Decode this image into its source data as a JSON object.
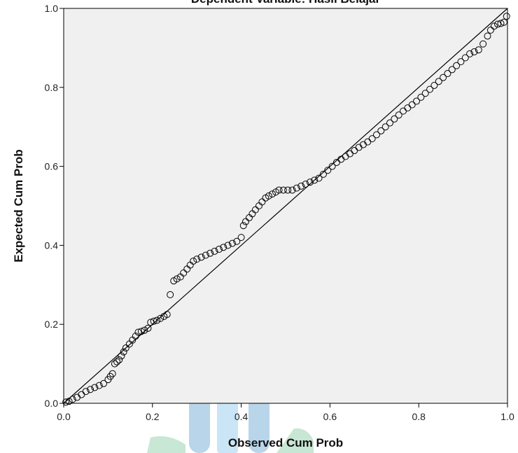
{
  "chart_data": {
    "type": "scatter",
    "title": "Dependent Variable: Hasil Belajar",
    "xlabel": "Observed Cum Prob",
    "ylabel": "Expected Cum Prob",
    "xlim": [
      0,
      1
    ],
    "ylim": [
      0,
      1
    ],
    "x_ticks": [
      "0.0",
      "0.2",
      "0.4",
      "0.6",
      "0.8",
      "1.0"
    ],
    "y_ticks": [
      "0.0",
      "0.2",
      "0.4",
      "0.6",
      "0.8",
      "1.0"
    ],
    "grid": false,
    "legend": "none",
    "reference_line": [
      [
        0,
        0
      ],
      [
        1,
        1
      ]
    ],
    "series": [
      {
        "points": [
          [
            0.005,
            0.003
          ],
          [
            0.012,
            0.005
          ],
          [
            0.02,
            0.01
          ],
          [
            0.03,
            0.015
          ],
          [
            0.04,
            0.022
          ],
          [
            0.05,
            0.03
          ],
          [
            0.06,
            0.035
          ],
          [
            0.07,
            0.04
          ],
          [
            0.08,
            0.045
          ],
          [
            0.09,
            0.05
          ],
          [
            0.1,
            0.06
          ],
          [
            0.105,
            0.068
          ],
          [
            0.11,
            0.075
          ],
          [
            0.115,
            0.1
          ],
          [
            0.12,
            0.105
          ],
          [
            0.125,
            0.11
          ],
          [
            0.13,
            0.12
          ],
          [
            0.135,
            0.13
          ],
          [
            0.14,
            0.14
          ],
          [
            0.148,
            0.15
          ],
          [
            0.155,
            0.16
          ],
          [
            0.162,
            0.17
          ],
          [
            0.168,
            0.18
          ],
          [
            0.175,
            0.182
          ],
          [
            0.182,
            0.185
          ],
          [
            0.19,
            0.19
          ],
          [
            0.196,
            0.205
          ],
          [
            0.203,
            0.208
          ],
          [
            0.21,
            0.21
          ],
          [
            0.218,
            0.215
          ],
          [
            0.226,
            0.22
          ],
          [
            0.233,
            0.225
          ],
          [
            0.24,
            0.275
          ],
          [
            0.248,
            0.31
          ],
          [
            0.255,
            0.315
          ],
          [
            0.263,
            0.32
          ],
          [
            0.27,
            0.33
          ],
          [
            0.278,
            0.34
          ],
          [
            0.285,
            0.35
          ],
          [
            0.292,
            0.36
          ],
          [
            0.3,
            0.365
          ],
          [
            0.31,
            0.37
          ],
          [
            0.32,
            0.375
          ],
          [
            0.33,
            0.38
          ],
          [
            0.34,
            0.385
          ],
          [
            0.35,
            0.39
          ],
          [
            0.36,
            0.395
          ],
          [
            0.37,
            0.4
          ],
          [
            0.38,
            0.405
          ],
          [
            0.39,
            0.41
          ],
          [
            0.4,
            0.42
          ],
          [
            0.405,
            0.45
          ],
          [
            0.41,
            0.46
          ],
          [
            0.418,
            0.47
          ],
          [
            0.425,
            0.48
          ],
          [
            0.432,
            0.49
          ],
          [
            0.44,
            0.5
          ],
          [
            0.447,
            0.51
          ],
          [
            0.455,
            0.52
          ],
          [
            0.462,
            0.525
          ],
          [
            0.47,
            0.53
          ],
          [
            0.478,
            0.535
          ],
          [
            0.485,
            0.54
          ],
          [
            0.495,
            0.54
          ],
          [
            0.505,
            0.54
          ],
          [
            0.515,
            0.54
          ],
          [
            0.525,
            0.545
          ],
          [
            0.535,
            0.55
          ],
          [
            0.545,
            0.555
          ],
          [
            0.555,
            0.56
          ],
          [
            0.565,
            0.565
          ],
          [
            0.575,
            0.57
          ],
          [
            0.585,
            0.58
          ],
          [
            0.595,
            0.59
          ],
          [
            0.605,
            0.6
          ],
          [
            0.615,
            0.61
          ],
          [
            0.625,
            0.618
          ],
          [
            0.635,
            0.625
          ],
          [
            0.645,
            0.632
          ],
          [
            0.655,
            0.64
          ],
          [
            0.665,
            0.648
          ],
          [
            0.675,
            0.655
          ],
          [
            0.685,
            0.662
          ],
          [
            0.695,
            0.67
          ],
          [
            0.705,
            0.68
          ],
          [
            0.715,
            0.69
          ],
          [
            0.725,
            0.7
          ],
          [
            0.735,
            0.71
          ],
          [
            0.745,
            0.72
          ],
          [
            0.755,
            0.73
          ],
          [
            0.765,
            0.74
          ],
          [
            0.775,
            0.748
          ],
          [
            0.785,
            0.756
          ],
          [
            0.795,
            0.765
          ],
          [
            0.805,
            0.775
          ],
          [
            0.815,
            0.785
          ],
          [
            0.825,
            0.795
          ],
          [
            0.835,
            0.805
          ],
          [
            0.845,
            0.815
          ],
          [
            0.855,
            0.825
          ],
          [
            0.865,
            0.835
          ],
          [
            0.875,
            0.845
          ],
          [
            0.885,
            0.855
          ],
          [
            0.895,
            0.865
          ],
          [
            0.905,
            0.875
          ],
          [
            0.915,
            0.885
          ],
          [
            0.925,
            0.89
          ],
          [
            0.935,
            0.895
          ],
          [
            0.945,
            0.91
          ],
          [
            0.955,
            0.93
          ],
          [
            0.962,
            0.945
          ],
          [
            0.97,
            0.955
          ],
          [
            0.978,
            0.96
          ],
          [
            0.985,
            0.962
          ],
          [
            0.992,
            0.965
          ],
          [
            0.998,
            0.98
          ]
        ]
      }
    ]
  }
}
